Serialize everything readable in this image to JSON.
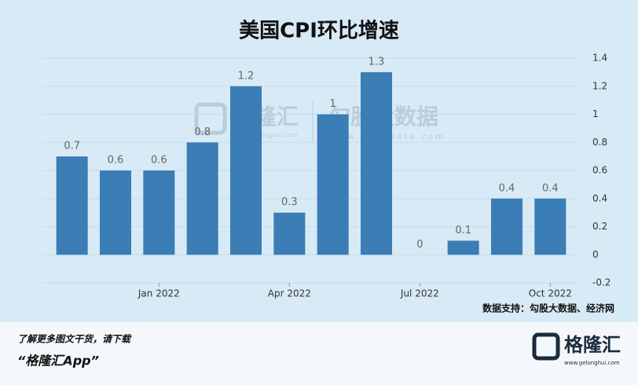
{
  "chart_data": {
    "type": "bar",
    "title": "美国CPI环比增速",
    "categories": [
      null,
      null,
      "Jan 2022",
      null,
      null,
      "Apr 2022",
      null,
      null,
      "Jul 2022",
      null,
      null,
      "Oct 2022"
    ],
    "values": [
      0.7,
      0.6,
      0.6,
      0.8,
      1.2,
      0.3,
      1,
      1.3,
      0,
      0.1,
      0.4,
      0.4
    ],
    "color": "#3b7db5",
    "ylim": [
      -0.2,
      1.4
    ],
    "yticks": [
      -0.2,
      0,
      0.2,
      0.4,
      0.6,
      0.8,
      1,
      1.2,
      1.4
    ],
    "grid": true,
    "y_axis_side": "right",
    "source": "数据支持：勾股大数据、经济网"
  },
  "watermarks": {
    "left": "格隆汇",
    "left_site": "www.gelonghui.com",
    "right": "勾股大数据",
    "right_site": "www.gogudata.com"
  },
  "footer": {
    "prompt": "了解更多图文干货，请下载",
    "app": "“格隆汇App”",
    "logo": "格隆汇",
    "site": "www.gelonghui.com"
  }
}
